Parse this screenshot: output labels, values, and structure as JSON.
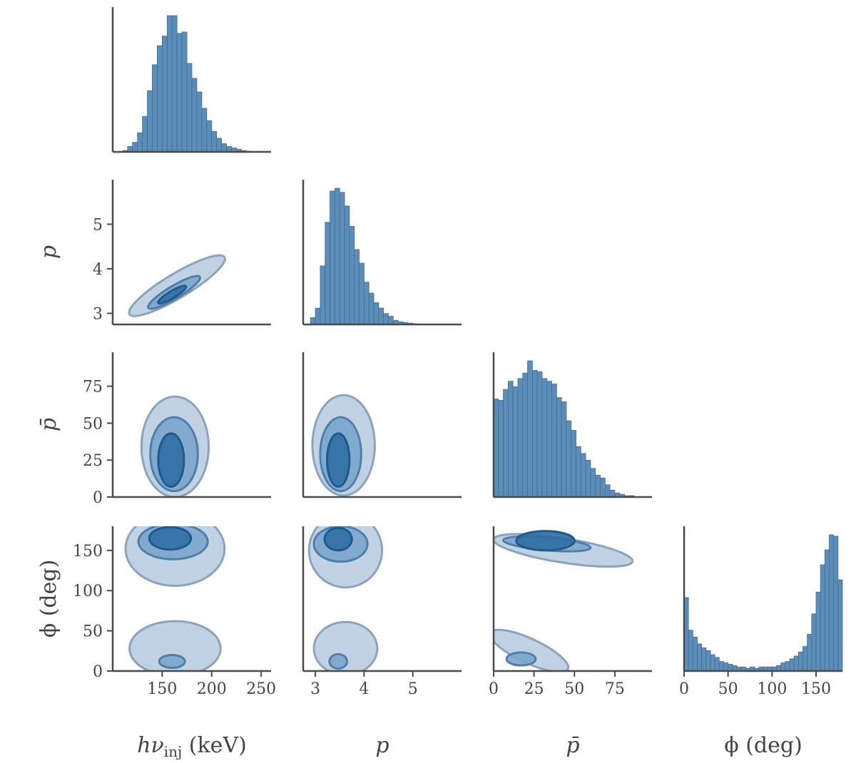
{
  "chart_data": {
    "type": "corner",
    "colors": {
      "hist": "#5b8db8",
      "hist_edge": "#3f6f99",
      "c1": "#bdd0e2",
      "c2": "#7aa5cb",
      "c3": "#2f6ea3"
    },
    "parameters": [
      {
        "id": "hnu",
        "label": "hν",
        "label_sub": "inj",
        "label_unit": "(keV)",
        "range": [
          100,
          260
        ],
        "ticks": [
          150,
          200,
          250
        ]
      },
      {
        "id": "p",
        "label": "p",
        "range": [
          2.75,
          6.0
        ],
        "ticks": [
          3,
          4,
          5
        ]
      },
      {
        "id": "pbar",
        "label": "p̄",
        "range": [
          0,
          98
        ],
        "ticks": [
          0,
          25,
          50,
          75
        ]
      },
      {
        "id": "phi",
        "label": "ϕ (deg)",
        "range": [
          0,
          180
        ],
        "ticks": [
          0,
          50,
          100,
          150
        ]
      }
    ],
    "histograms": [
      {
        "param": "hnu",
        "bin_edges": [
          110,
          115,
          120,
          125,
          130,
          135,
          140,
          145,
          150,
          155,
          160,
          165,
          170,
          175,
          180,
          185,
          190,
          195,
          200,
          205,
          210,
          215,
          220,
          225,
          230,
          235,
          240,
          245
        ],
        "counts": [
          1,
          4,
          7,
          14,
          26,
          45,
          64,
          78,
          85,
          100,
          100,
          87,
          88,
          65,
          54,
          44,
          32,
          23,
          15,
          10,
          6,
          4,
          3,
          2,
          1,
          0.5,
          0.3
        ]
      },
      {
        "param": "p",
        "bin_edges": [
          2.9,
          3.0,
          3.1,
          3.2,
          3.3,
          3.4,
          3.5,
          3.6,
          3.7,
          3.8,
          3.9,
          4.0,
          4.1,
          4.2,
          4.3,
          4.4,
          4.5,
          4.6,
          4.7,
          4.8,
          4.9,
          5.0,
          5.1,
          5.2,
          5.3,
          5.4,
          5.5,
          5.6,
          5.7
        ],
        "counts": [
          5,
          12,
          43,
          75,
          98,
          100,
          97,
          87,
          72,
          55,
          45,
          31,
          23,
          16,
          12,
          8,
          6,
          3,
          2,
          1.5,
          1,
          0.5,
          0.3,
          0.2,
          0.1,
          0.1,
          0.1,
          0.1
        ]
      },
      {
        "param": "pbar",
        "bin_edges": [
          0,
          3,
          6,
          9,
          12,
          15,
          18,
          21,
          24,
          27,
          30,
          33,
          36,
          39,
          42,
          45,
          48,
          51,
          54,
          57,
          60,
          63,
          66,
          69,
          72,
          75,
          78,
          81,
          84,
          87,
          90,
          93,
          96
        ],
        "counts": [
          72,
          71,
          79,
          85,
          81,
          87,
          91,
          100,
          93,
          92,
          87,
          85,
          83,
          73,
          70,
          56,
          49,
          37,
          32,
          27,
          21,
          16,
          14,
          9,
          5,
          3,
          2,
          1,
          1,
          0,
          0,
          0
        ]
      },
      {
        "param": "phi",
        "bin_edges": [
          0,
          5,
          10,
          15,
          20,
          25,
          30,
          35,
          40,
          45,
          50,
          55,
          60,
          65,
          70,
          75,
          80,
          85,
          90,
          95,
          100,
          105,
          110,
          115,
          120,
          125,
          130,
          135,
          140,
          145,
          150,
          155,
          160,
          165,
          170,
          175,
          180
        ],
        "counts": [
          54,
          30,
          25,
          20,
          17,
          15,
          12,
          10,
          7,
          6,
          5,
          4,
          3,
          3,
          2,
          3,
          2,
          3,
          3,
          3,
          3,
          4,
          6,
          7,
          9,
          11,
          14,
          18,
          27,
          42,
          58,
          78,
          89,
          100,
          99,
          67
        ]
      }
    ],
    "contour_levels": [
      "outer",
      "middle",
      "inner"
    ],
    "contours": [
      {
        "x": "hnu",
        "y": "p",
        "levels": [
          {
            "cx": 165,
            "cy": 3.62,
            "rx": 48,
            "ry": 0.22,
            "angle": 31
          },
          {
            "cx": 162,
            "cy": 3.47,
            "rx": 26,
            "ry": 0.11,
            "angle": 31
          },
          {
            "cx": 160,
            "cy": 3.42,
            "rx": 14,
            "ry": 0.06,
            "angle": 31
          }
        ]
      },
      {
        "x": "hnu",
        "y": "pbar",
        "levels": [
          {
            "cx": 163,
            "cy": 34,
            "rx": 34,
            "ry": 34
          },
          {
            "cx": 162,
            "cy": 29,
            "rx": 24,
            "ry": 25
          },
          {
            "cx": 159,
            "cy": 25,
            "rx": 13,
            "ry": 18
          }
        ]
      },
      {
        "x": "p",
        "y": "pbar",
        "levels": [
          {
            "cx": 3.58,
            "cy": 35,
            "rx": 0.64,
            "ry": 34
          },
          {
            "cx": 3.52,
            "cy": 29,
            "rx": 0.42,
            "ry": 25
          },
          {
            "cx": 3.47,
            "cy": 25,
            "rx": 0.23,
            "ry": 18
          }
        ]
      },
      {
        "x": "hnu",
        "y": "phi",
        "levels": [
          {
            "cx": 163,
            "cy": 152,
            "rx": 50,
            "ry": 46
          },
          {
            "cx": 161,
            "cy": 161,
            "rx": 35,
            "ry": 22
          },
          {
            "cx": 158,
            "cy": 165,
            "rx": 21,
            "ry": 14
          },
          {
            "cx": 163,
            "cy": 28,
            "rx": 46,
            "ry": 34
          },
          {
            "cx": 160,
            "cy": 12,
            "rx": 13,
            "ry": 8
          }
        ]
      },
      {
        "x": "p",
        "y": "phi",
        "levels": [
          {
            "cx": 3.62,
            "cy": 150,
            "rx": 0.75,
            "ry": 46
          },
          {
            "cx": 3.52,
            "cy": 158,
            "rx": 0.55,
            "ry": 22
          },
          {
            "cx": 3.47,
            "cy": 164,
            "rx": 0.28,
            "ry": 14
          },
          {
            "cx": 3.62,
            "cy": 28,
            "rx": 0.65,
            "ry": 33
          },
          {
            "cx": 3.47,
            "cy": 12,
            "rx": 0.18,
            "ry": 9
          }
        ]
      },
      {
        "x": "pbar",
        "y": "phi",
        "levels": [
          {
            "cx": 43,
            "cy": 150,
            "rx": 43,
            "ry": 45,
            "angle": -9
          },
          {
            "cx": 33,
            "cy": 158,
            "rx": 27,
            "ry": 20,
            "angle": -5
          },
          {
            "cx": 32,
            "cy": 162,
            "rx": 18,
            "ry": 12
          },
          {
            "cx": 22,
            "cy": 25,
            "rx": 24,
            "ry": 30,
            "angle": -25
          },
          {
            "cx": 17,
            "cy": 15,
            "rx": 9,
            "ry": 8
          }
        ]
      }
    ]
  }
}
